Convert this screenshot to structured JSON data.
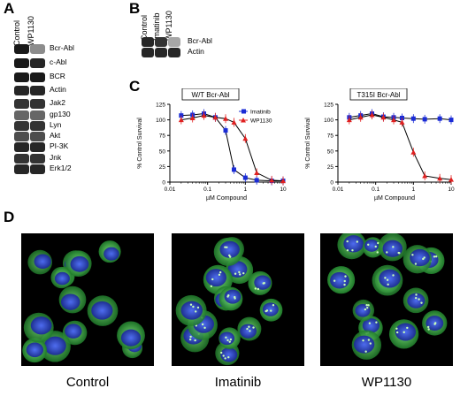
{
  "panels": {
    "A": "A",
    "B": "B",
    "C": "C",
    "D": "D"
  },
  "panelA": {
    "lanes": [
      "Control",
      "WP1130"
    ],
    "rows": [
      "Bcr-Abl",
      "c-Abl",
      "BCR",
      "Actin",
      "Jak2",
      "gp130",
      "Lyn",
      "Akt",
      "PI-3K",
      "Jnk",
      "Erk1/2"
    ]
  },
  "panelB": {
    "lanes": [
      "Control",
      "Imatinib",
      "WP1130"
    ],
    "rows": [
      "Bcr-Abl",
      "Actin"
    ]
  },
  "chart_data": [
    {
      "type": "line",
      "title": "W/T Bcr-Abl",
      "xlabel": "µM Compound",
      "ylabel": "% Control Survival",
      "xscale": "log",
      "xlim": [
        0.01,
        10
      ],
      "ylim": [
        0,
        125
      ],
      "xticks": [
        "0.01",
        "0.1",
        "1",
        "10"
      ],
      "yticks": [
        "0",
        "25",
        "50",
        "75",
        "100",
        "125"
      ],
      "legend": "top-right",
      "series": [
        {
          "name": "Imatinib",
          "color": "#1a2bd6",
          "marker": "square",
          "x": [
            0.02,
            0.04,
            0.08,
            0.16,
            0.3,
            0.5,
            1.0,
            2.0,
            5.0,
            10.0
          ],
          "y": [
            107,
            108,
            110,
            104,
            83,
            20,
            7,
            3,
            2,
            2
          ]
        },
        {
          "name": "WP1130",
          "color": "#e02020",
          "marker": "triangle",
          "x": [
            0.02,
            0.04,
            0.08,
            0.16,
            0.3,
            0.5,
            1.0,
            2.0,
            5.0,
            10.0
          ],
          "y": [
            100,
            103,
            107,
            104,
            102,
            96,
            70,
            15,
            3,
            2
          ]
        }
      ]
    },
    {
      "type": "line",
      "title": "T315I Bcr-Abl",
      "xlabel": "µM Compound",
      "ylabel": "% Control Survival",
      "xscale": "log",
      "xlim": [
        0.01,
        10
      ],
      "ylim": [
        0,
        125
      ],
      "xticks": [
        "0.01",
        "0.1",
        "1",
        "10"
      ],
      "yticks": [
        "0",
        "25",
        "50",
        "75",
        "100",
        "125"
      ],
      "series": [
        {
          "color": "#1a2bd6",
          "marker": "square",
          "x": [
            0.02,
            0.04,
            0.08,
            0.16,
            0.3,
            0.5,
            1.0,
            2.0,
            5.0,
            10.0
          ],
          "y": [
            104,
            107,
            110,
            105,
            104,
            103,
            102,
            101,
            102,
            100
          ]
        },
        {
          "color": "#e02020",
          "marker": "triangle",
          "x": [
            0.02,
            0.04,
            0.08,
            0.16,
            0.3,
            0.5,
            1.0,
            2.0,
            5.0,
            10.0
          ],
          "y": [
            100,
            104,
            108,
            104,
            100,
            96,
            48,
            10,
            6,
            4
          ]
        }
      ]
    }
  ],
  "panelD": {
    "labels": [
      "Control",
      "Imatinib",
      "WP1130"
    ]
  },
  "colors": {
    "imatinib": "#1a2bd6",
    "wp1130": "#e02020",
    "nucleus": "#2a3dd8",
    "stain": "#3fcf3f"
  }
}
